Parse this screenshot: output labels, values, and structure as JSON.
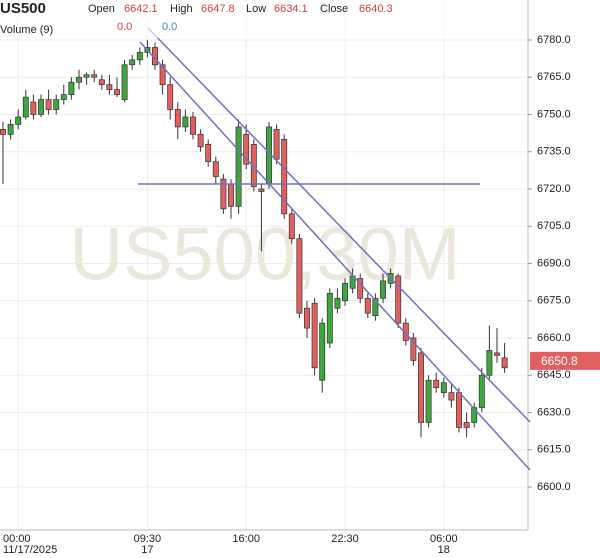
{
  "chart_data": {
    "type": "candlestick",
    "title": "US500",
    "watermark": "US500,30M",
    "header": {
      "open_label": "Open",
      "open": "6642.1",
      "high_label": "High",
      "high": "6647.8",
      "low_label": "Low",
      "low": "6634.1",
      "close_label": "Close",
      "close": "6640.3",
      "volume_label": "Volume (9)",
      "volume_a": "0.0",
      "volume_b": "0.0"
    },
    "categories": [
      null,
      null,
      "00:00",
      null,
      null,
      null,
      null,
      null,
      null,
      null,
      null,
      null,
      null,
      null,
      null,
      null,
      null,
      null,
      null,
      "09:30",
      null,
      null,
      null,
      null,
      null,
      null,
      null,
      null,
      null,
      null,
      null,
      null,
      "16:00",
      null,
      null,
      null,
      null,
      null,
      null,
      null,
      null,
      null,
      null,
      null,
      null,
      "22:30",
      null,
      null,
      null,
      null,
      null,
      null,
      null,
      null,
      null,
      null,
      null,
      null,
      "06:00",
      null,
      null,
      null,
      null,
      null,
      null,
      null,
      null
    ],
    "dates": [
      null,
      null,
      "11/17/2025",
      null,
      null,
      null,
      null,
      null,
      null,
      null,
      null,
      null,
      null,
      null,
      null,
      null,
      null,
      null,
      null,
      "17",
      null,
      null,
      null,
      null,
      null,
      null,
      null,
      null,
      null,
      null,
      null,
      null,
      null,
      null,
      null,
      null,
      null,
      null,
      null,
      null,
      null,
      null,
      null,
      null,
      null,
      null,
      null,
      null,
      null,
      null,
      null,
      null,
      null,
      null,
      null,
      null,
      null,
      null,
      "18",
      null,
      null,
      null,
      null,
      null,
      null,
      null,
      null
    ],
    "open": [
      6744,
      6742,
      6746,
      6749,
      6755,
      6750,
      6756,
      6752,
      6756,
      6758,
      6763,
      6765,
      6766,
      6764,
      6762,
      6760,
      6756,
      6770,
      6772,
      6775,
      6777,
      6770,
      6762,
      6752,
      6745,
      6749,
      6742,
      6738,
      6731,
      6724,
      6722,
      6713,
      6742,
      6738,
      6720,
      6722,
      6744,
      6740,
      6710,
      6700,
      6672,
      6674,
      6643,
      6658,
      6672,
      6675,
      6680,
      6684,
      6676,
      6669,
      6676,
      6682,
      6685,
      6666,
      6660,
      6654,
      6626,
      6643,
      6638,
      6638,
      6638,
      6626,
      6626,
      6632,
      6645,
      6654,
      6652
    ],
    "high": [
      6747,
      6748,
      6752,
      6760,
      6758,
      6758,
      6760,
      6758,
      6762,
      6765,
      6768,
      6767,
      6768,
      6766,
      6766,
      6765,
      6772,
      6774,
      6777,
      6780,
      6779,
      6772,
      6765,
      6755,
      6752,
      6751,
      6744,
      6740,
      6733,
      6726,
      6724,
      6748,
      6746,
      6740,
      6722,
      6747,
      6746,
      6742,
      6712,
      6702,
      6675,
      6676,
      6668,
      6680,
      6680,
      6684,
      6688,
      6686,
      6678,
      6678,
      6686,
      6688,
      6686,
      6668,
      6662,
      6656,
      6645,
      6646,
      6644,
      6642,
      6640,
      6630,
      6634,
      6648,
      6665,
      6664,
      6658
    ],
    "low": [
      6722,
      6740,
      6744,
      6748,
      6748,
      6749,
      6750,
      6750,
      6754,
      6756,
      6760,
      6762,
      6763,
      6760,
      6758,
      6757,
      6755,
      6768,
      6770,
      6773,
      6768,
      6758,
      6748,
      6740,
      6743,
      6740,
      6735,
      6729,
      6722,
      6710,
      6708,
      6710,
      6728,
      6719,
      6695,
      6720,
      6730,
      6708,
      6698,
      6668,
      6660,
      6645,
      6638,
      6656,
      6670,
      6673,
      6678,
      6674,
      6668,
      6667,
      6674,
      6680,
      6664,
      6657,
      6649,
      6620,
      6624,
      6638,
      6636,
      6632,
      6622,
      6620,
      6624,
      6630,
      6643,
      6650,
      6646
    ],
    "close": [
      6742,
      6746,
      6749,
      6757,
      6750,
      6756,
      6752,
      6756,
      6758,
      6763,
      6765,
      6766,
      6765,
      6762,
      6760,
      6758,
      6770,
      6772,
      6775,
      6777,
      6770,
      6762,
      6752,
      6745,
      6749,
      6742,
      6737,
      6731,
      6725,
      6712,
      6713,
      6745,
      6730,
      6721,
      6719,
      6745,
      6732,
      6710,
      6700,
      6670,
      6664,
      6648,
      6666,
      6678,
      6676,
      6682,
      6685,
      6676,
      6670,
      6676,
      6683,
      6686,
      6666,
      6659,
      6651,
      6626,
      6643,
      6640,
      6642,
      6635,
      6624,
      6624,
      6632,
      6645,
      6655,
      6653,
      6648
    ],
    "up_color": "#3fa53f",
    "down_color": "#e06060",
    "last_price": {
      "value": 6650.8,
      "label": "6650.8"
    },
    "ylim": [
      6582.7,
      6796.1
    ],
    "yticks": [
      {
        "value": 6600,
        "label": "6600.0"
      },
      {
        "value": 6615,
        "label": "6615.0"
      },
      {
        "value": 6630,
        "label": "6630.0"
      },
      {
        "value": 6645,
        "label": "6645.0"
      },
      {
        "value": 6660,
        "label": "6660.0"
      },
      {
        "value": 6675,
        "label": "6675.0"
      },
      {
        "value": 6690,
        "label": "6690.0"
      },
      {
        "value": 6705,
        "label": "6705.0"
      },
      {
        "value": 6720,
        "label": "6720.0"
      },
      {
        "value": 6735,
        "label": "6735.0"
      },
      {
        "value": 6750,
        "label": "6750.0"
      },
      {
        "value": 6765,
        "label": "6765.0"
      },
      {
        "value": 6780,
        "label": "6780.0"
      }
    ],
    "grid": true
  }
}
